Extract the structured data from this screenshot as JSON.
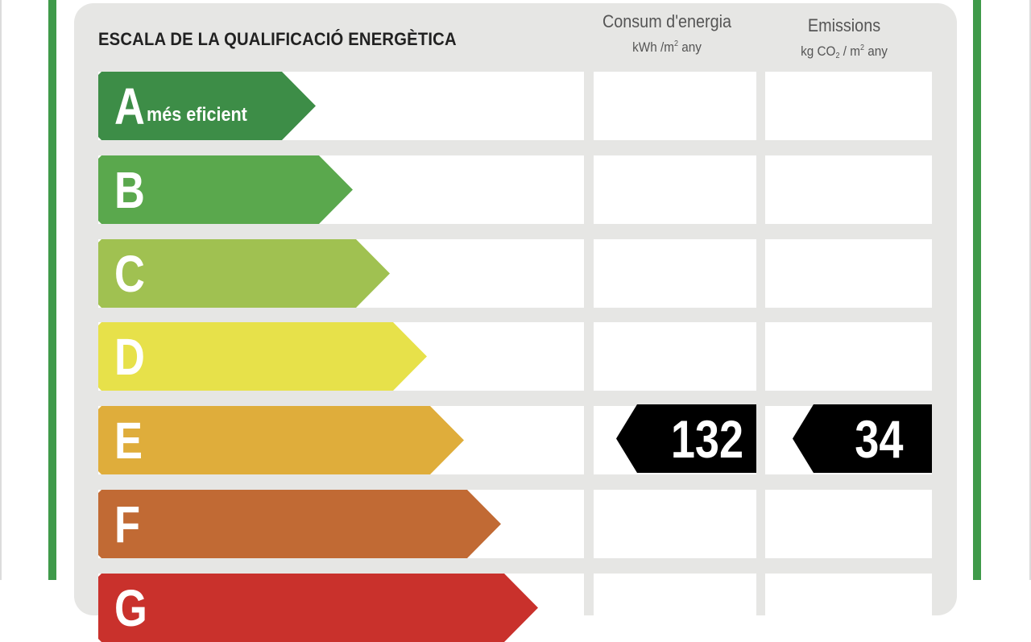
{
  "header": {
    "title": "ESCALA DE LA QUALIFICACIÓ ENERGÈTICA",
    "consum": {
      "line1": "Consum d'energia",
      "unit_a": "kWh /m",
      "unit_sup": "2",
      "unit_b": " any"
    },
    "emissions": {
      "line1": "Emissions",
      "unit_a": "kg CO",
      "unit_sub": "2",
      "unit_c": " / m",
      "unit_sup": "2",
      "unit_b": " any"
    }
  },
  "rating_scale": [
    {
      "letter": "A",
      "label": "més eficient",
      "color": "#3d8d47"
    },
    {
      "letter": "B",
      "label": "",
      "color": "#5aa84d"
    },
    {
      "letter": "C",
      "label": "",
      "color": "#a0c151"
    },
    {
      "letter": "D",
      "label": "",
      "color": "#e7e14a"
    },
    {
      "letter": "E",
      "label": "",
      "color": "#dfad3b"
    },
    {
      "letter": "F",
      "label": "",
      "color": "#c16a34"
    },
    {
      "letter": "G",
      "label": "",
      "color": "#c9312c"
    }
  ],
  "result": {
    "rating": "E",
    "consum_value": "132",
    "emissions_value": "34"
  },
  "colors": {
    "frame": "#3f9a4a",
    "panel": "#e6e6e4",
    "badge": "#000000"
  }
}
